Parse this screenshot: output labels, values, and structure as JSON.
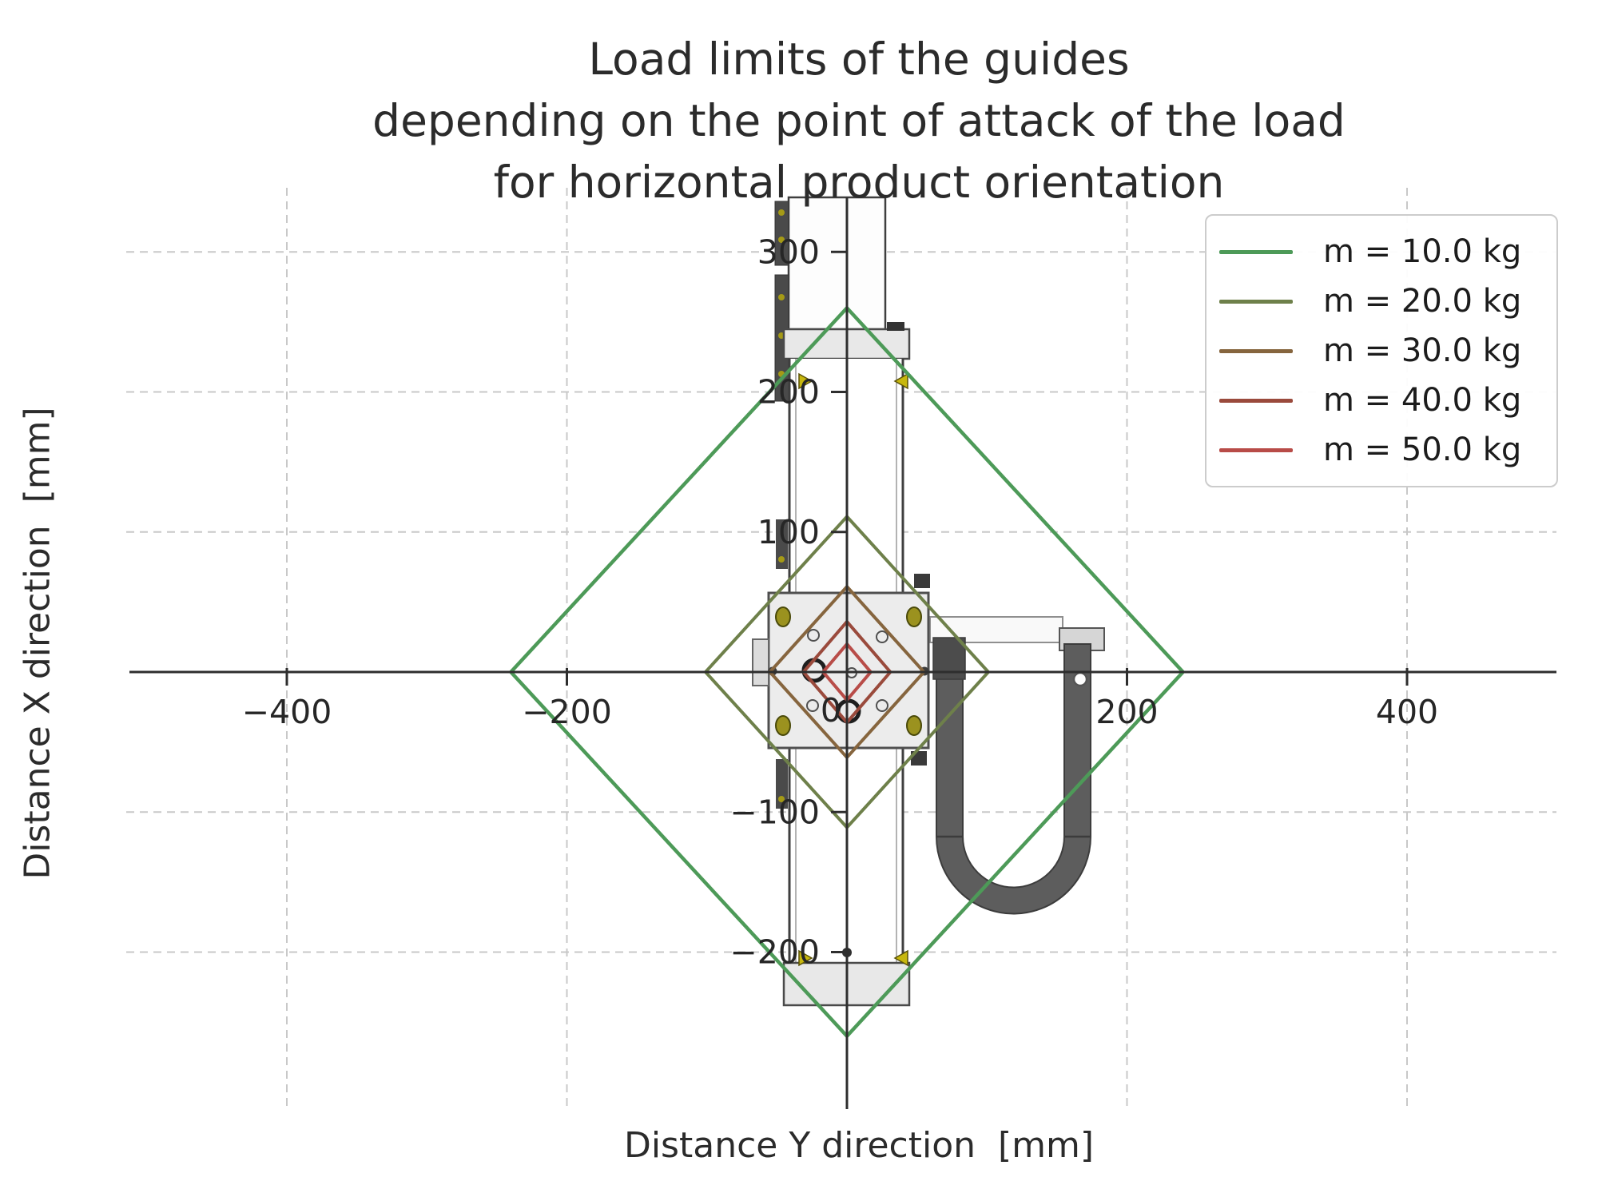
{
  "chart_data": {
    "type": "line",
    "title": "Load limits of the guides\ndepending on the point of attack of the load\nfor horizontal product orientation",
    "xlabel": "Distance Y direction  [mm]",
    "ylabel": "Distance X direction  [mm]",
    "xlim": [
      -512,
      507
    ],
    "ylim": [
      -313,
      339
    ],
    "xticks": [
      -400,
      -200,
      0,
      200,
      400
    ],
    "yticks": [
      300,
      200,
      100,
      0,
      -100,
      -200
    ],
    "grid": true,
    "legend_position": "upper right",
    "series": [
      {
        "name": "m = 10.0 kg",
        "mass_kg": 10.0,
        "color": "#4d9a58",
        "y_half_extent_mm": 240,
        "x_half_extent_mm": 260,
        "points": [
          [
            0,
            260
          ],
          [
            240,
            0
          ],
          [
            0,
            -260
          ],
          [
            -240,
            0
          ]
        ]
      },
      {
        "name": "m = 20.0 kg",
        "mass_kg": 20.0,
        "color": "#6e804a",
        "y_half_extent_mm": 101,
        "x_half_extent_mm": 111,
        "points": [
          [
            0,
            111
          ],
          [
            101,
            0
          ],
          [
            0,
            -111
          ],
          [
            -101,
            0
          ]
        ]
      },
      {
        "name": "m = 30.0 kg",
        "mass_kg": 30.0,
        "color": "#86653e",
        "y_half_extent_mm": 55,
        "x_half_extent_mm": 61,
        "points": [
          [
            0,
            61
          ],
          [
            55,
            0
          ],
          [
            0,
            -61
          ],
          [
            -55,
            0
          ]
        ]
      },
      {
        "name": "m = 40.0 kg",
        "mass_kg": 40.0,
        "color": "#9a4a3c",
        "y_half_extent_mm": 31,
        "x_half_extent_mm": 36,
        "points": [
          [
            0,
            36
          ],
          [
            31,
            0
          ],
          [
            0,
            -36
          ],
          [
            -31,
            0
          ]
        ]
      },
      {
        "name": "m = 50.0 kg",
        "mass_kg": 50.0,
        "color": "#b84c48",
        "y_half_extent_mm": 17,
        "x_half_extent_mm": 20,
        "points": [
          [
            0,
            20
          ],
          [
            17,
            0
          ],
          [
            0,
            -20
          ],
          [
            -17,
            0
          ]
        ]
      }
    ]
  },
  "colors": {
    "grid": "#c8c8c8",
    "axis": "#2e2e2e",
    "marker_yellow": "#c7b70e",
    "chain_gray": "#5d5d5d"
  }
}
